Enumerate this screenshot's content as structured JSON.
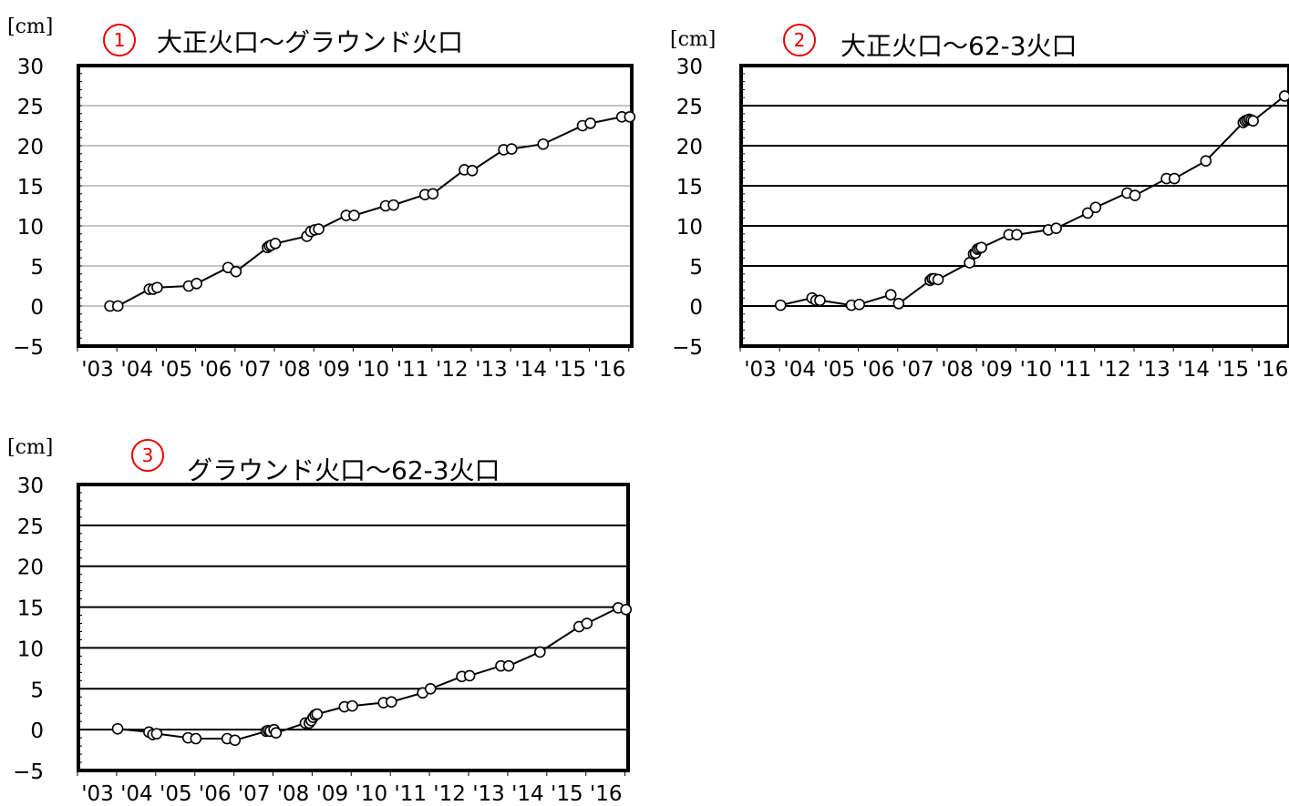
{
  "chart_data": [
    {
      "type": "line",
      "badge": "1",
      "title": "大正火口～グラウンド火口",
      "unit_label": "[cm]",
      "ylim": [
        -5,
        30
      ],
      "yticks": [
        30,
        25,
        20,
        15,
        10,
        5,
        0,
        -5
      ],
      "xlim": [
        2003,
        2016.8
      ],
      "xticks": [
        "'03",
        "'04",
        "'05",
        "'06",
        "'07",
        "'08",
        "'09",
        "'10",
        "'11",
        "'12",
        "'13",
        "'14",
        "'15",
        "'16"
      ],
      "grid": "horizontal",
      "series": [
        {
          "points": [
            [
              2003.5,
              0.0
            ],
            [
              2003.7,
              0.0
            ],
            [
              2004.5,
              2.1
            ],
            [
              2004.6,
              2.1
            ],
            [
              2004.7,
              2.3
            ],
            [
              2005.5,
              2.5
            ],
            [
              2005.7,
              2.8
            ],
            [
              2006.5,
              4.8
            ],
            [
              2006.7,
              4.3
            ],
            [
              2007.5,
              7.3
            ],
            [
              2007.55,
              7.5
            ],
            [
              2007.6,
              7.6
            ],
            [
              2007.7,
              7.8
            ],
            [
              2008.5,
              8.7
            ],
            [
              2008.6,
              9.3
            ],
            [
              2008.7,
              9.5
            ],
            [
              2008.8,
              9.6
            ],
            [
              2009.5,
              11.3
            ],
            [
              2009.7,
              11.3
            ],
            [
              2010.5,
              12.5
            ],
            [
              2010.7,
              12.6
            ],
            [
              2011.5,
              13.9
            ],
            [
              2011.7,
              14.0
            ],
            [
              2012.5,
              17.0
            ],
            [
              2012.7,
              16.9
            ],
            [
              2013.5,
              19.5
            ],
            [
              2013.7,
              19.6
            ],
            [
              2014.5,
              20.2
            ],
            [
              2015.5,
              22.5
            ],
            [
              2015.7,
              22.8
            ],
            [
              2016.5,
              23.6
            ],
            [
              2016.7,
              23.6
            ]
          ]
        }
      ]
    },
    {
      "type": "line",
      "badge": "2",
      "title": "大正火口～62-3火口",
      "unit_label": "[cm]",
      "ylim": [
        -5,
        30
      ],
      "yticks": [
        30,
        25,
        20,
        15,
        10,
        5,
        0,
        -5
      ],
      "xlim": [
        2003,
        2016.8
      ],
      "xticks": [
        "'03",
        "'04",
        "'05",
        "'06",
        "'07",
        "'08",
        "'09",
        "'10",
        "'11",
        "'12",
        "'13",
        "'14",
        "'15",
        "'16"
      ],
      "grid": "horizontal",
      "series": [
        {
          "points": [
            [
              2003.7,
              0.1
            ],
            [
              2004.5,
              1.0
            ],
            [
              2004.6,
              0.7
            ],
            [
              2004.7,
              0.7
            ],
            [
              2005.5,
              0.1
            ],
            [
              2005.7,
              0.2
            ],
            [
              2006.5,
              1.4
            ],
            [
              2006.7,
              0.3
            ],
            [
              2007.5,
              3.2
            ],
            [
              2007.55,
              3.4
            ],
            [
              2007.6,
              3.4
            ],
            [
              2007.7,
              3.3
            ],
            [
              2008.5,
              5.4
            ],
            [
              2008.6,
              6.5
            ],
            [
              2008.65,
              6.6
            ],
            [
              2008.7,
              7.1
            ],
            [
              2008.75,
              7.2
            ],
            [
              2008.8,
              7.3
            ],
            [
              2009.5,
              8.9
            ],
            [
              2009.7,
              8.9
            ],
            [
              2010.5,
              9.5
            ],
            [
              2010.7,
              9.7
            ],
            [
              2011.5,
              11.6
            ],
            [
              2011.7,
              12.3
            ],
            [
              2012.5,
              14.1
            ],
            [
              2012.7,
              13.8
            ],
            [
              2013.5,
              15.9
            ],
            [
              2013.7,
              15.9
            ],
            [
              2014.5,
              18.1
            ],
            [
              2015.45,
              22.9
            ],
            [
              2015.5,
              23.1
            ],
            [
              2015.55,
              23.2
            ],
            [
              2015.6,
              23.3
            ],
            [
              2015.65,
              23.2
            ],
            [
              2015.7,
              23.1
            ],
            [
              2016.5,
              26.2
            ],
            [
              2016.7,
              26.0
            ]
          ]
        }
      ]
    },
    {
      "type": "line",
      "badge": "3",
      "title": "グラウンド火口～62-3火口",
      "unit_label": "[cm]",
      "ylim": [
        -5,
        30
      ],
      "yticks": [
        30,
        25,
        20,
        15,
        10,
        5,
        0,
        -5
      ],
      "xlim": [
        2003,
        2016.8
      ],
      "xticks": [
        "'03",
        "'04",
        "'05",
        "'06",
        "'07",
        "'08",
        "'09",
        "'10",
        "'11",
        "'12",
        "'13",
        "'14",
        "'15",
        "'16"
      ],
      "grid": "horizontal",
      "series": [
        {
          "points": [
            [
              2003.7,
              0.1
            ],
            [
              2004.5,
              -0.3
            ],
            [
              2004.6,
              -0.6
            ],
            [
              2004.7,
              -0.5
            ],
            [
              2005.5,
              -1.0
            ],
            [
              2005.7,
              -1.1
            ],
            [
              2006.5,
              -1.1
            ],
            [
              2006.7,
              -1.3
            ],
            [
              2007.5,
              -0.2
            ],
            [
              2007.55,
              -0.1
            ],
            [
              2007.6,
              -0.2
            ],
            [
              2007.7,
              0.0
            ],
            [
              2007.75,
              -0.4
            ],
            [
              2008.5,
              0.8
            ],
            [
              2008.6,
              0.8
            ],
            [
              2008.65,
              1.1
            ],
            [
              2008.7,
              1.5
            ],
            [
              2008.75,
              1.8
            ],
            [
              2008.8,
              1.9
            ],
            [
              2009.5,
              2.8
            ],
            [
              2009.7,
              2.9
            ],
            [
              2010.5,
              3.3
            ],
            [
              2010.7,
              3.4
            ],
            [
              2011.5,
              4.5
            ],
            [
              2011.7,
              5.0
            ],
            [
              2012.5,
              6.5
            ],
            [
              2012.7,
              6.6
            ],
            [
              2013.5,
              7.8
            ],
            [
              2013.7,
              7.8
            ],
            [
              2014.5,
              9.5
            ],
            [
              2015.5,
              12.6
            ],
            [
              2015.7,
              13.0
            ],
            [
              2016.5,
              14.9
            ],
            [
              2016.7,
              14.7
            ]
          ]
        }
      ]
    }
  ]
}
